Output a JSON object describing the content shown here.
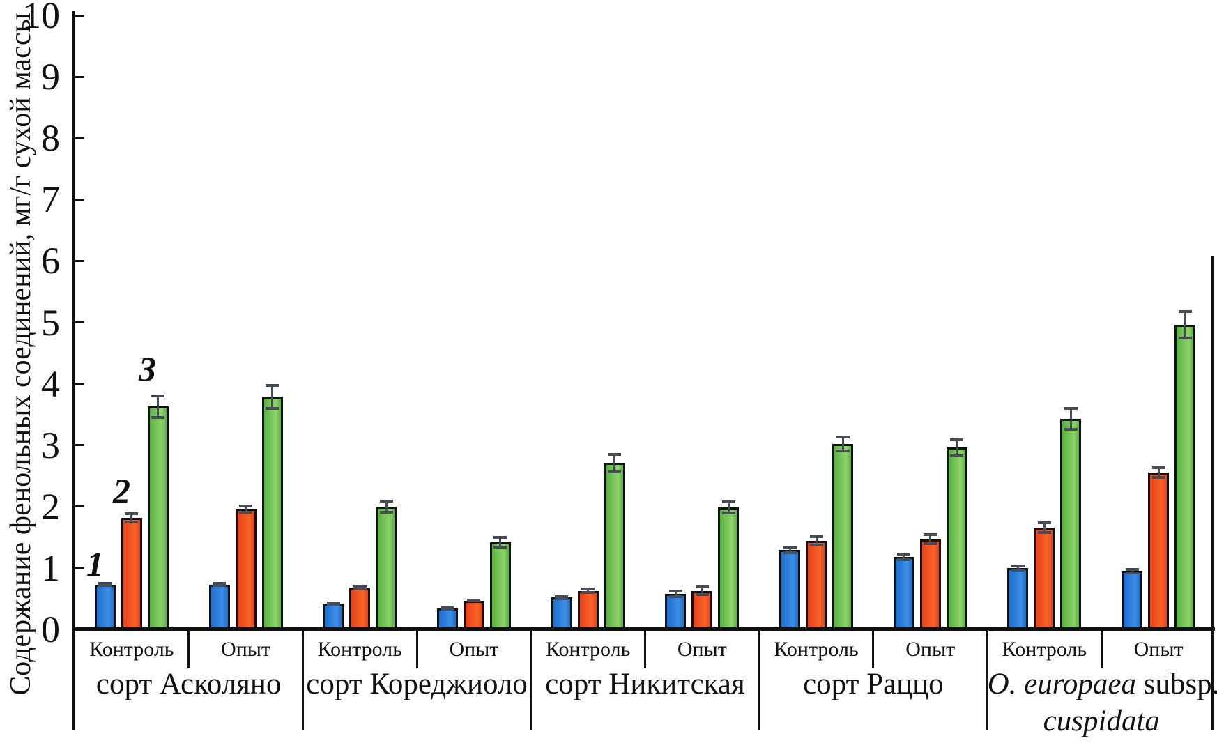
{
  "chart_data": {
    "type": "bar",
    "title": "",
    "ylabel": "Содержание фенольных соединений, мг/г сухой массы",
    "ylim": [
      0,
      10
    ],
    "yticks": [
      0,
      1,
      2,
      3,
      4,
      5,
      6,
      7,
      8,
      9,
      10
    ],
    "grid": false,
    "legend": "none (series marked by italic numerals 1, 2, 3 above first group)",
    "series": [
      {
        "label": "1",
        "color": "#1a6fd0",
        "color_light": "#3f8de4"
      },
      {
        "label": "2",
        "color": "#e8411a",
        "color_light": "#f86428"
      },
      {
        "label": "3",
        "color": "#55b23e",
        "color_light": "#8fd36a"
      }
    ],
    "error_bar_color": "#454c55",
    "groups": [
      {
        "name": "сорт Асколяно",
        "name_lines": [
          [
            {
              "text": "сорт Асколяно",
              "italic": false
            }
          ]
        ],
        "conditions": [
          {
            "label": "Контроль",
            "values": [
              0.73,
              1.82,
              3.63
            ],
            "errors": [
              0.03,
              0.08,
              0.19
            ]
          },
          {
            "label": "Опыт",
            "values": [
              0.73,
              1.96,
              3.79
            ],
            "errors": [
              0.03,
              0.06,
              0.2
            ]
          }
        ]
      },
      {
        "name": "сорт Кореджиоло",
        "name_lines": [
          [
            {
              "text": "сорт Кореджиоло",
              "italic": false
            }
          ]
        ],
        "conditions": [
          {
            "label": "Контроль",
            "values": [
              0.42,
              0.68,
              2.0
            ],
            "errors": [
              0.02,
              0.03,
              0.1
            ]
          },
          {
            "label": "Опыт",
            "values": [
              0.34,
              0.47,
              1.42
            ],
            "errors": [
              0.02,
              0.02,
              0.09
            ]
          }
        ]
      },
      {
        "name": "сорт Никитская",
        "name_lines": [
          [
            {
              "text": "сорт Никитская",
              "italic": false
            }
          ]
        ],
        "conditions": [
          {
            "label": "Контроль",
            "values": [
              0.52,
              0.63,
              2.71
            ],
            "errors": [
              0.03,
              0.04,
              0.15
            ]
          },
          {
            "label": "Опыт",
            "values": [
              0.58,
              0.63,
              1.99
            ],
            "errors": [
              0.06,
              0.07,
              0.1
            ]
          }
        ]
      },
      {
        "name": "сорт Раццо",
        "name_lines": [
          [
            {
              "text": "сорт Раццо",
              "italic": false
            }
          ]
        ],
        "conditions": [
          {
            "label": "Контроль",
            "values": [
              1.29,
              1.44,
              3.02
            ],
            "errors": [
              0.05,
              0.08,
              0.13
            ]
          },
          {
            "label": "Опыт",
            "values": [
              1.18,
              1.47,
              2.96
            ],
            "errors": [
              0.06,
              0.08,
              0.14
            ]
          }
        ]
      },
      {
        "name": "O. europaea subsp. cuspidata",
        "name_lines": [
          [
            {
              "text": "O. europaea",
              "italic": true
            },
            {
              "text": " subsp.",
              "italic": false
            }
          ],
          [
            {
              "text": "cuspidata",
              "italic": true
            }
          ]
        ],
        "conditions": [
          {
            "label": "Контроль",
            "values": [
              1.0,
              1.66,
              3.43
            ],
            "errors": [
              0.05,
              0.09,
              0.18
            ]
          },
          {
            "label": "Опыт",
            "values": [
              0.95,
              2.55,
              4.96
            ],
            "errors": [
              0.04,
              0.09,
              0.23
            ]
          }
        ]
      }
    ]
  }
}
